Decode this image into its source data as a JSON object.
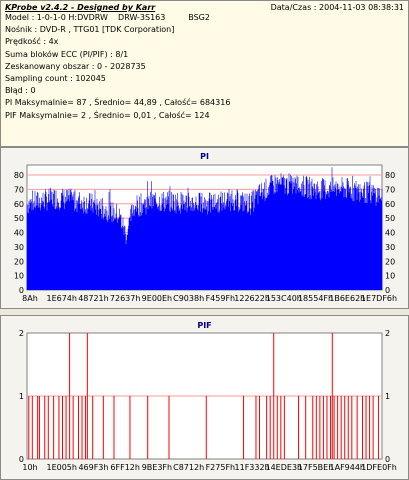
{
  "info": {
    "title": "KProbe v2.4.2 - Designed by Karr",
    "datetime": "Data/Czas : 2004-11-03 08:38:31",
    "lines": [
      "Model : 1-0-1-0 H:DVDRW    DRW-3S163         BSG2",
      "Nośnik : DVD-R , TTG01 [TDK Corporation]",
      "Prędkość : 4x",
      "Suma bloków ECC (PI/PIF) : 8/1",
      "Zeskanowany obszar : 0 - 2028735",
      "Sampling count : 102045",
      "Błąd : 0",
      "PI Maksymalnie= 87 , Średnio= 44,89 , Całość= 684316",
      "PIF Maksymalnie= 2 , Średnio= 0,01 , Całość= 124"
    ]
  },
  "colors": {
    "pi_bar": "#0000ff",
    "pif_bar": "#ff0000",
    "grid": "#ff9999",
    "plot_bg": "#ffffff"
  },
  "chart_data": [
    {
      "type": "bar",
      "title": "PI",
      "ylim": [
        0,
        87
      ],
      "y_ticks": [
        0,
        10,
        20,
        30,
        40,
        50,
        60,
        70,
        80
      ],
      "x_ticks": [
        "8Ah",
        "1E674h",
        "48721h",
        "72637h",
        "9E00Eh",
        "C9038h",
        "F459Fh",
        "122622h",
        "153C40h",
        "18554Fh",
        "1B6E62h",
        "1E7DF6h"
      ],
      "max": 87,
      "average": 44.89,
      "total": 684316,
      "profile": [
        [
          0.0,
          60
        ],
        [
          0.04,
          62
        ],
        [
          0.08,
          64
        ],
        [
          0.12,
          63
        ],
        [
          0.18,
          60
        ],
        [
          0.22,
          56
        ],
        [
          0.26,
          52
        ],
        [
          0.28,
          38
        ],
        [
          0.3,
          58
        ],
        [
          0.36,
          62
        ],
        [
          0.44,
          61
        ],
        [
          0.52,
          60
        ],
        [
          0.58,
          63
        ],
        [
          0.63,
          60
        ],
        [
          0.66,
          68
        ],
        [
          0.7,
          74
        ],
        [
          0.76,
          73
        ],
        [
          0.82,
          70
        ],
        [
          0.88,
          71
        ],
        [
          0.93,
          69
        ],
        [
          1.0,
          66
        ]
      ]
    },
    {
      "type": "bar",
      "title": "PIF",
      "ylim": [
        0,
        2
      ],
      "y_ticks": [
        0,
        1,
        2
      ],
      "x_ticks": [
        "10h",
        "1E005h",
        "469F3h",
        "6FF12h",
        "9BE3Fh",
        "C8712h",
        "F275Fh",
        "11F332h",
        "14EDE3h",
        "17F5BEh",
        "1AF944h",
        "1DFE0Fh"
      ],
      "max": 2,
      "average": 0.01,
      "total": 124,
      "spikes_value_2": [
        0.12,
        0.17,
        0.695,
        0.86
      ],
      "spikes_value_1": [
        0.005,
        0.015,
        0.03,
        0.035,
        0.05,
        0.06,
        0.075,
        0.09,
        0.1,
        0.11,
        0.13,
        0.145,
        0.155,
        0.165,
        0.185,
        0.215,
        0.245,
        0.29,
        0.34,
        0.4,
        0.505,
        0.61,
        0.645,
        0.655,
        0.675,
        0.685,
        0.705,
        0.715,
        0.725,
        0.765,
        0.785,
        0.805,
        0.815,
        0.825,
        0.835,
        0.845,
        0.855,
        0.865,
        0.875,
        0.885,
        0.895,
        0.905,
        0.915,
        0.93,
        0.945,
        0.955,
        0.965,
        0.975,
        0.99
      ]
    }
  ]
}
